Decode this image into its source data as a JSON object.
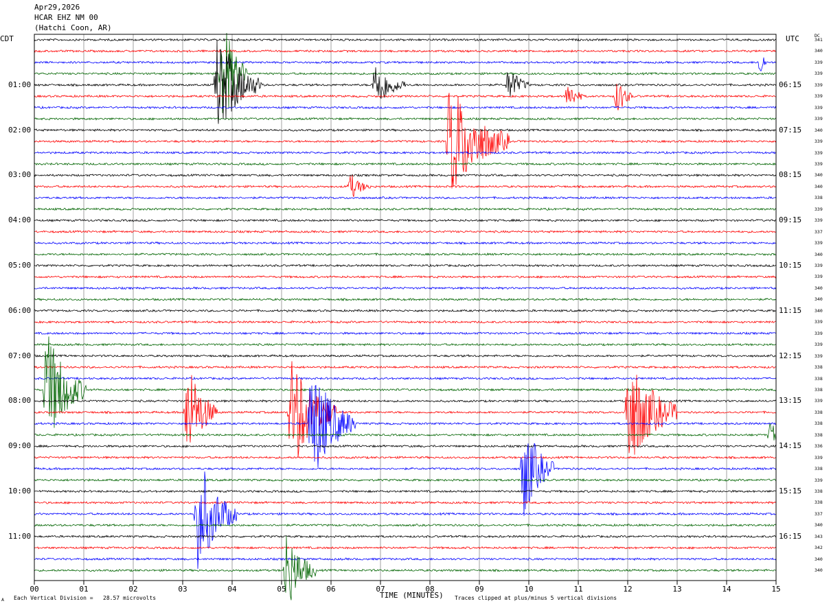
{
  "header": {
    "date": "Apr29,2026",
    "station": "HCAR EHZ NM 00",
    "location": "(Hatchi Coon, AR)"
  },
  "left_timezone": "CDT",
  "right_timezone": "UTC",
  "dc_label": "DC",
  "footer": {
    "scale_note": "Each Vertical Division =   28.57 microvolts",
    "clip_note": "Traces clipped at plus/minus 5 vertical divisions",
    "corner_mark": "A"
  },
  "colors": {
    "trace_cycle": [
      "#000000",
      "#ff0000",
      "#0000ff",
      "#006400"
    ],
    "grid": "#a0a0a0",
    "frame": "#000000"
  },
  "chart_data": {
    "type": "line",
    "title": "",
    "xlabel": "TIME (MINUTES)",
    "ylabel": "",
    "xlim": [
      0,
      15
    ],
    "x_ticks": [
      "00",
      "01",
      "02",
      "03",
      "04",
      "05",
      "06",
      "07",
      "08",
      "09",
      "10",
      "11",
      "12",
      "13",
      "14",
      "15"
    ],
    "grid": true,
    "trace_count": 48,
    "left_hour_labels": [
      "01:00",
      "02:00",
      "03:00",
      "04:00",
      "05:00",
      "06:00",
      "07:00",
      "08:00",
      "09:00",
      "10:00",
      "11:00"
    ],
    "right_hour_labels": [
      "06:15",
      "07:15",
      "08:15",
      "09:15",
      "10:15",
      "11:15",
      "12:15",
      "13:15",
      "14:15",
      "15:15",
      "16:15"
    ],
    "dc_offsets": [
      "341",
      "340",
      "339",
      "339",
      "339",
      "339",
      "339",
      "339",
      "340",
      "339",
      "339",
      "339",
      "340",
      "340",
      "338",
      "339",
      "339",
      "337",
      "339",
      "340",
      "339",
      "339",
      "340",
      "340",
      "340",
      "339",
      "339",
      "339",
      "339",
      "338",
      "338",
      "338",
      "339",
      "338",
      "338",
      "338",
      "336",
      "339",
      "338",
      "339",
      "338",
      "338",
      "337",
      "340",
      "343",
      "342",
      "340",
      "340"
    ],
    "events": [
      {
        "trace": 3,
        "minute": 3.8,
        "amplitude": 6,
        "duration": 0.5
      },
      {
        "trace": 4,
        "minute": 3.7,
        "amplitude": 5,
        "duration": 0.9
      },
      {
        "trace": 4,
        "minute": 6.9,
        "amplitude": 2.5,
        "duration": 0.6
      },
      {
        "trace": 4,
        "minute": 9.6,
        "amplitude": 1.8,
        "duration": 0.4
      },
      {
        "trace": 5,
        "minute": 10.8,
        "amplitude": 1.5,
        "duration": 0.3
      },
      {
        "trace": 5,
        "minute": 11.8,
        "amplitude": 1.8,
        "duration": 0.3
      },
      {
        "trace": 2,
        "minute": 14.7,
        "amplitude": 1.8,
        "duration": 0.1
      },
      {
        "trace": 9,
        "minute": 8.4,
        "amplitude": 6,
        "duration": 1.2
      },
      {
        "trace": 13,
        "minute": 6.4,
        "amplitude": 1.2,
        "duration": 0.4
      },
      {
        "trace": 31,
        "minute": 0.25,
        "amplitude": 6,
        "duration": 0.8
      },
      {
        "trace": 33,
        "minute": 3.1,
        "amplitude": 5,
        "duration": 0.6
      },
      {
        "trace": 33,
        "minute": 5.2,
        "amplitude": 6,
        "duration": 0.9
      },
      {
        "trace": 34,
        "minute": 5.6,
        "amplitude": 6,
        "duration": 0.9
      },
      {
        "trace": 33,
        "minute": 12.0,
        "amplitude": 6,
        "duration": 1.0
      },
      {
        "trace": 38,
        "minute": 9.9,
        "amplitude": 5,
        "duration": 0.6
      },
      {
        "trace": 42,
        "minute": 3.3,
        "amplitude": 6,
        "duration": 0.8
      },
      {
        "trace": 47,
        "minute": 5.1,
        "amplitude": 4,
        "duration": 0.6
      },
      {
        "trace": 35,
        "minute": 14.9,
        "amplitude": 1.5,
        "duration": 0.2
      }
    ]
  }
}
